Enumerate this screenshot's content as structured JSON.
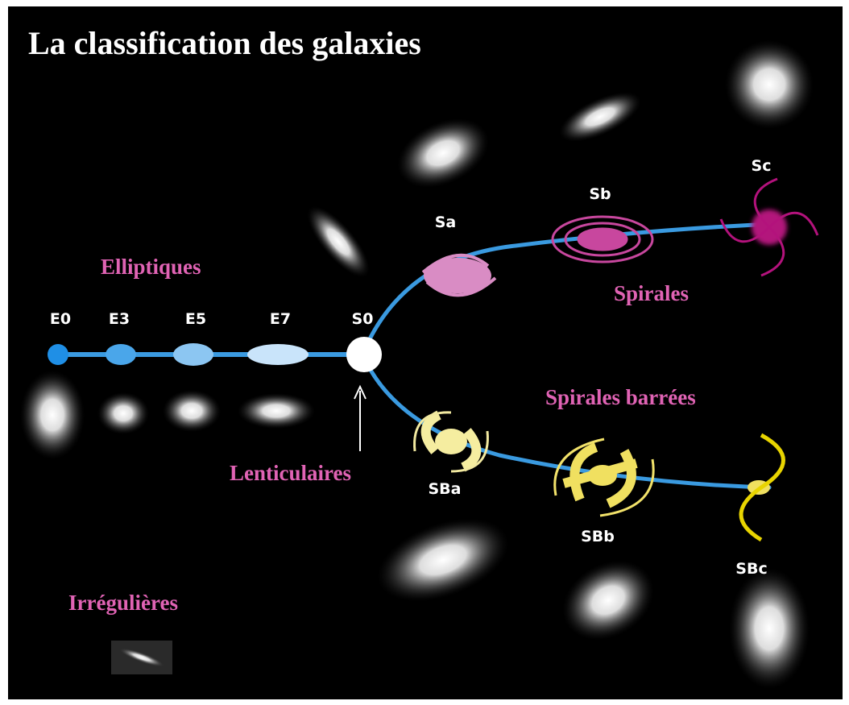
{
  "title": "La classification des galaxies",
  "groups": [
    "Elliptiques",
    "Spirales",
    "Spirales barrées",
    "Lenticulaires",
    "Irrégulières"
  ],
  "nodes": [
    "E0",
    "E3",
    "E5",
    "E7",
    "S0",
    "Sa",
    "Sb",
    "Sc",
    "SBa",
    "SBb",
    "SBc"
  ]
}
